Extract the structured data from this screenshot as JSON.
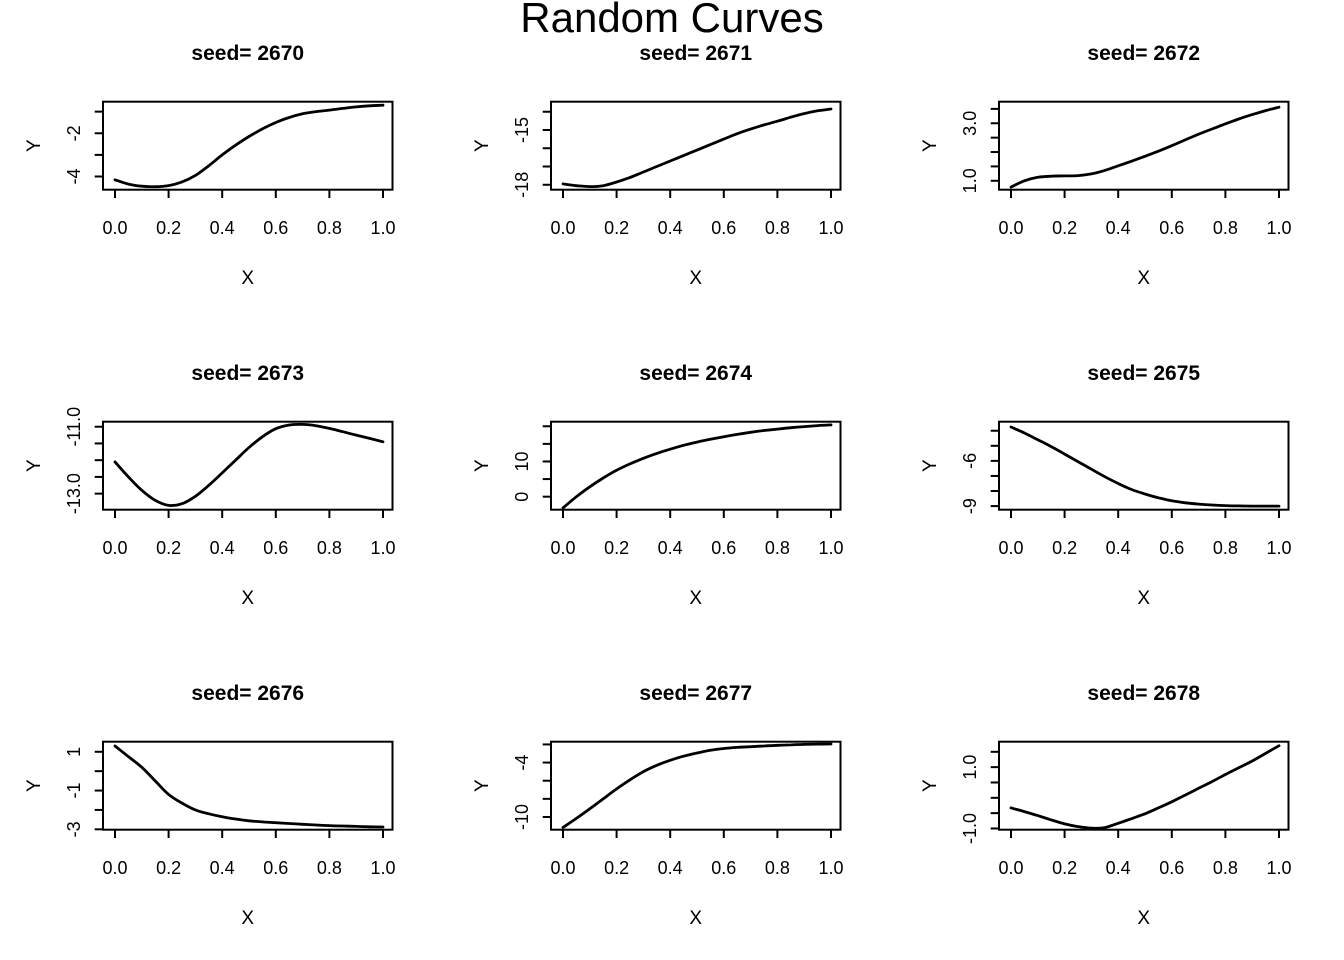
{
  "title": "Random Curves",
  "figure": {
    "background": "#ffffff",
    "line_color": "#000000",
    "text_color": "#000000",
    "grid_on": false,
    "rows": 3,
    "cols": 3
  },
  "x_axis": {
    "label": "X",
    "ticks": [
      0.0,
      0.2,
      0.4,
      0.6,
      0.8,
      1.0
    ],
    "tick_labels": [
      "0.0",
      "0.2",
      "0.4",
      "0.6",
      "0.8",
      "1.0"
    ],
    "lim": [
      -0.04,
      1.04
    ]
  },
  "y_axis_label": "Y",
  "chart_data": [
    {
      "type": "line",
      "seed": 2670,
      "title": "seed= 2670",
      "xlabel": "X",
      "ylabel": "Y",
      "ylim": [
        -4.61,
        -0.54
      ],
      "y_ticks": [
        -1,
        -2,
        -3,
        -4
      ],
      "y_tick_labels": [
        "",
        "-2",
        "",
        "-4"
      ],
      "x": [
        0,
        0.05,
        0.1,
        0.15,
        0.2,
        0.25,
        0.3,
        0.35,
        0.4,
        0.45,
        0.5,
        0.55,
        0.6,
        0.65,
        0.7,
        0.75,
        0.8,
        0.85,
        0.9,
        0.95,
        1.0
      ],
      "y": [
        -4.15,
        -4.35,
        -4.45,
        -4.47,
        -4.42,
        -4.25,
        -3.95,
        -3.5,
        -3.0,
        -2.55,
        -2.15,
        -1.8,
        -1.5,
        -1.27,
        -1.1,
        -1.0,
        -0.93,
        -0.85,
        -0.78,
        -0.73,
        -0.7
      ]
    },
    {
      "type": "line",
      "seed": 2671,
      "title": "seed= 2671",
      "xlabel": "X",
      "ylabel": "Y",
      "ylim": [
        -18.27,
        -13.45
      ],
      "y_ticks": [
        -14,
        -15,
        -16,
        -17,
        -18
      ],
      "y_tick_labels": [
        "",
        "-15",
        "",
        "",
        "-18"
      ],
      "x": [
        0,
        0.05,
        0.1,
        0.15,
        0.2,
        0.25,
        0.3,
        0.35,
        0.4,
        0.45,
        0.5,
        0.55,
        0.6,
        0.65,
        0.7,
        0.75,
        0.8,
        0.85,
        0.9,
        0.95,
        1.0
      ],
      "y": [
        -17.95,
        -18.05,
        -18.1,
        -18.05,
        -17.85,
        -17.6,
        -17.3,
        -17.0,
        -16.7,
        -16.4,
        -16.1,
        -15.8,
        -15.5,
        -15.2,
        -14.95,
        -14.72,
        -14.52,
        -14.3,
        -14.1,
        -13.95,
        -13.85
      ]
    },
    {
      "type": "line",
      "seed": 2672,
      "title": "seed= 2672",
      "xlabel": "X",
      "ylabel": "Y",
      "ylim": [
        0.69,
        3.75
      ],
      "y_ticks": [
        3.5,
        3.0,
        2.5,
        2.0,
        1.5,
        1.0
      ],
      "y_tick_labels": [
        "",
        "3.0",
        "",
        "",
        "",
        "1.0"
      ],
      "x": [
        0,
        0.05,
        0.1,
        0.15,
        0.2,
        0.25,
        0.3,
        0.35,
        0.4,
        0.45,
        0.5,
        0.55,
        0.6,
        0.65,
        0.7,
        0.75,
        0.8,
        0.85,
        0.9,
        0.95,
        1.0
      ],
      "y": [
        0.78,
        1.0,
        1.12,
        1.16,
        1.17,
        1.18,
        1.24,
        1.36,
        1.52,
        1.68,
        1.85,
        2.03,
        2.22,
        2.42,
        2.62,
        2.8,
        2.98,
        3.15,
        3.3,
        3.44,
        3.56
      ]
    },
    {
      "type": "line",
      "seed": 2673,
      "title": "seed= 2673",
      "xlabel": "X",
      "ylabel": "Y",
      "ylim": [
        -13.48,
        -10.85
      ],
      "y_ticks": [
        -11.0,
        -11.5,
        -12.0,
        -12.5,
        -13.0
      ],
      "y_tick_labels": [
        "-11.0",
        "",
        "",
        "",
        "-13.0"
      ],
      "x": [
        0,
        0.05,
        0.1,
        0.15,
        0.2,
        0.25,
        0.3,
        0.35,
        0.4,
        0.45,
        0.5,
        0.55,
        0.6,
        0.65,
        0.7,
        0.75,
        0.8,
        0.85,
        0.9,
        0.95,
        1.0
      ],
      "y": [
        -12.05,
        -12.5,
        -12.9,
        -13.2,
        -13.35,
        -13.3,
        -13.08,
        -12.75,
        -12.38,
        -12.0,
        -11.62,
        -11.3,
        -11.06,
        -10.95,
        -10.93,
        -10.97,
        -11.05,
        -11.15,
        -11.25,
        -11.35,
        -11.45
      ]
    },
    {
      "type": "line",
      "seed": 2674,
      "title": "seed= 2674",
      "xlabel": "X",
      "ylabel": "Y",
      "ylim": [
        -3.7,
        21.3
      ],
      "y_ticks": [
        20,
        15,
        10,
        5,
        0
      ],
      "y_tick_labels": [
        "",
        "",
        "10",
        "",
        "0"
      ],
      "x": [
        0,
        0.05,
        0.1,
        0.15,
        0.2,
        0.25,
        0.3,
        0.35,
        0.4,
        0.45,
        0.5,
        0.55,
        0.6,
        0.65,
        0.7,
        0.75,
        0.8,
        0.85,
        0.9,
        0.95,
        1.0
      ],
      "y": [
        -3.2,
        0.0,
        2.8,
        5.3,
        7.5,
        9.3,
        10.9,
        12.3,
        13.5,
        14.6,
        15.5,
        16.3,
        17.0,
        17.7,
        18.3,
        18.8,
        19.2,
        19.6,
        19.9,
        20.2,
        20.4
      ]
    },
    {
      "type": "line",
      "seed": 2675,
      "title": "seed= 2675",
      "xlabel": "X",
      "ylabel": "Y",
      "ylim": [
        -9.24,
        -3.4
      ],
      "y_ticks": [
        -4,
        -5,
        -6,
        -7,
        -8,
        -9
      ],
      "y_tick_labels": [
        "",
        "",
        "-6",
        "",
        "",
        "-9"
      ],
      "x": [
        0,
        0.05,
        0.1,
        0.15,
        0.2,
        0.25,
        0.3,
        0.35,
        0.4,
        0.45,
        0.5,
        0.55,
        0.6,
        0.65,
        0.7,
        0.75,
        0.8,
        0.85,
        0.9,
        0.95,
        1.0
      ],
      "y": [
        -3.75,
        -4.15,
        -4.6,
        -5.05,
        -5.55,
        -6.05,
        -6.55,
        -7.05,
        -7.5,
        -7.9,
        -8.2,
        -8.45,
        -8.65,
        -8.78,
        -8.87,
        -8.93,
        -8.97,
        -8.99,
        -9.0,
        -9.0,
        -9.0
      ]
    },
    {
      "type": "line",
      "seed": 2676,
      "title": "seed= 2676",
      "xlabel": "X",
      "ylabel": "Y",
      "ylim": [
        -3.02,
        1.52
      ],
      "y_ticks": [
        1,
        0,
        -1,
        -2,
        -3
      ],
      "y_tick_labels": [
        "1",
        "",
        "-1",
        "",
        "-3"
      ],
      "x": [
        0,
        0.05,
        0.1,
        0.15,
        0.2,
        0.25,
        0.3,
        0.35,
        0.4,
        0.45,
        0.5,
        0.55,
        0.6,
        0.65,
        0.7,
        0.75,
        0.8,
        0.85,
        0.9,
        0.95,
        1.0
      ],
      "y": [
        1.3,
        0.75,
        0.2,
        -0.5,
        -1.2,
        -1.65,
        -2.0,
        -2.2,
        -2.35,
        -2.47,
        -2.56,
        -2.62,
        -2.66,
        -2.7,
        -2.74,
        -2.78,
        -2.81,
        -2.83,
        -2.85,
        -2.87,
        -2.88
      ]
    },
    {
      "type": "line",
      "seed": 2677,
      "title": "seed= 2677",
      "xlabel": "X",
      "ylabel": "Y",
      "ylim": [
        -11.4,
        -1.7
      ],
      "y_ticks": [
        -2,
        -4,
        -6,
        -8,
        -10
      ],
      "y_tick_labels": [
        "",
        "-4",
        "",
        "",
        "-10"
      ],
      "x": [
        0,
        0.05,
        0.1,
        0.15,
        0.2,
        0.25,
        0.3,
        0.35,
        0.4,
        0.45,
        0.5,
        0.55,
        0.6,
        0.65,
        0.7,
        0.75,
        0.8,
        0.85,
        0.9,
        0.95,
        1.0
      ],
      "y": [
        -11.15,
        -10.15,
        -9.1,
        -8.0,
        -6.9,
        -5.9,
        -5.0,
        -4.3,
        -3.75,
        -3.3,
        -2.95,
        -2.65,
        -2.45,
        -2.33,
        -2.25,
        -2.17,
        -2.1,
        -2.05,
        -2.0,
        -1.97,
        -1.95
      ]
    },
    {
      "type": "line",
      "seed": 2678,
      "title": "seed= 2678",
      "xlabel": "X",
      "ylabel": "Y",
      "ylim": [
        -1.04,
        1.83
      ],
      "y_ticks": [
        1.5,
        1.0,
        0.5,
        0.0,
        -0.5,
        -1.0
      ],
      "y_tick_labels": [
        "",
        "1.0",
        "",
        "",
        "",
        "-1.0"
      ],
      "x": [
        0,
        0.05,
        0.1,
        0.15,
        0.2,
        0.25,
        0.3,
        0.35,
        0.4,
        0.45,
        0.5,
        0.55,
        0.6,
        0.65,
        0.7,
        0.75,
        0.8,
        0.85,
        0.9,
        0.95,
        1.0
      ],
      "y": [
        -0.33,
        -0.45,
        -0.58,
        -0.72,
        -0.85,
        -0.94,
        -0.99,
        -0.97,
        -0.83,
        -0.68,
        -0.52,
        -0.33,
        -0.13,
        0.09,
        0.31,
        0.53,
        0.76,
        0.98,
        1.2,
        1.45,
        1.7
      ]
    }
  ]
}
